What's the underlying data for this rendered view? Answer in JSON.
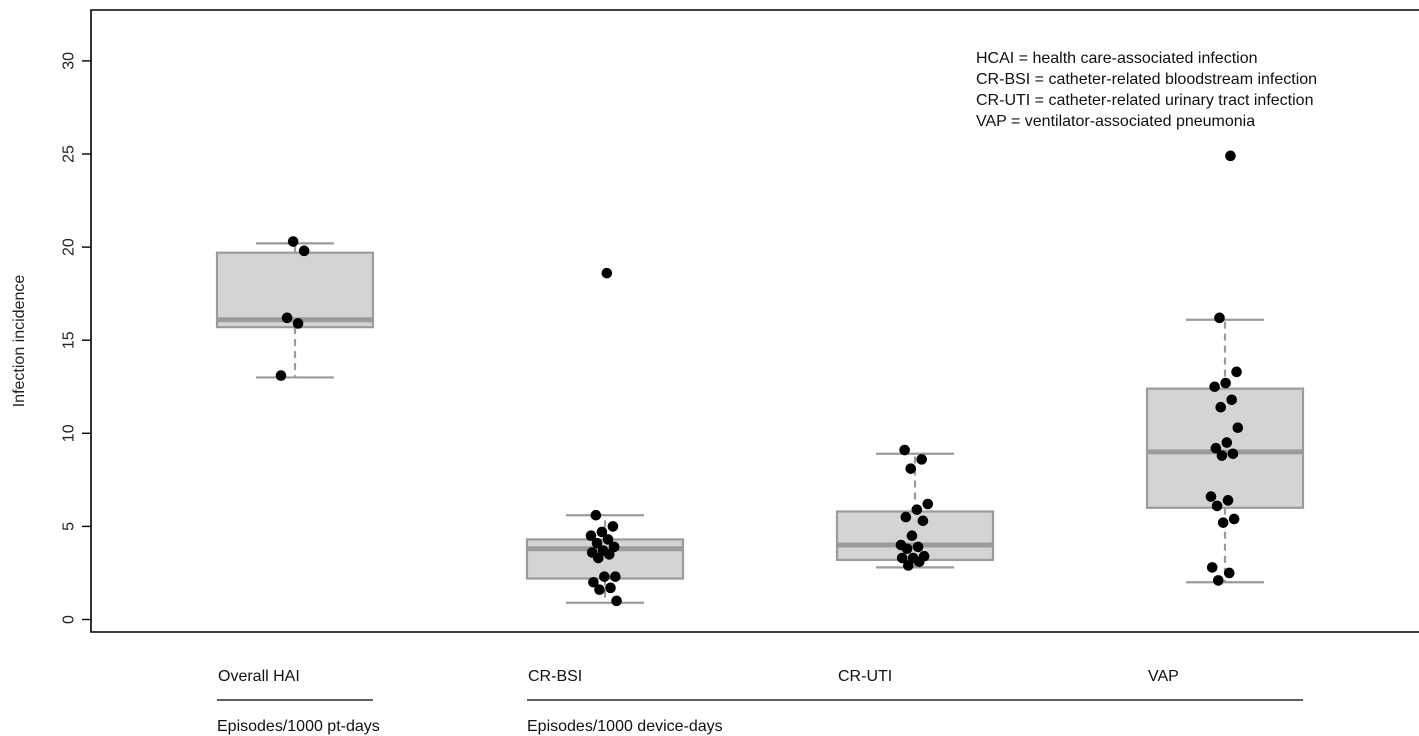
{
  "chart_data": {
    "type": "box",
    "ylabel": "Infection incidence",
    "ylim": [
      0,
      32
    ],
    "yticks": [
      0,
      5,
      10,
      15,
      20,
      25,
      30
    ],
    "legend_placement": "top-right",
    "legend_lines": [
      "HCAI = health care-associated infection",
      "CR-BSI = catheter-related bloodstream infection",
      "CR-UTI = catheter-related urinary tract infection",
      "VAP = ventilator-associated pneumonia"
    ],
    "groups": [
      {
        "label": "Episodes/1000 pt-days",
        "categories": [
          "Overall HAI"
        ]
      },
      {
        "label": "Episodes/1000 device-days",
        "categories": [
          "CR-BSI",
          "CR-UTI",
          "VAP"
        ]
      }
    ],
    "categories": [
      "Overall HAI",
      "CR-BSI",
      "CR-UTI",
      "VAP"
    ],
    "boxes": [
      {
        "name": "Overall HAI",
        "whisker_low": 13.0,
        "q1": 15.7,
        "median": 16.1,
        "q3": 19.7,
        "whisker_high": 20.2,
        "points": [
          13.1,
          15.9,
          16.2,
          19.8,
          20.3
        ]
      },
      {
        "name": "CR-BSI",
        "whisker_low": 0.9,
        "q1": 2.2,
        "median": 3.8,
        "q3": 4.3,
        "whisker_high": 5.6,
        "points": [
          18.6,
          5.6,
          5.0,
          4.7,
          4.5,
          4.3,
          4.1,
          3.9,
          3.7,
          3.6,
          3.5,
          3.3,
          2.3,
          2.3,
          2.0,
          1.7,
          1.6,
          1.0
        ]
      },
      {
        "name": "CR-UTI",
        "whisker_low": 2.8,
        "q1": 3.2,
        "median": 4.0,
        "q3": 5.8,
        "whisker_high": 8.9,
        "points": [
          9.1,
          8.6,
          8.1,
          6.2,
          5.9,
          5.5,
          5.3,
          4.5,
          4.0,
          3.9,
          3.8,
          3.4,
          3.3,
          3.3,
          3.1,
          2.9
        ]
      },
      {
        "name": "VAP",
        "whisker_low": 2.0,
        "q1": 6.0,
        "median": 9.0,
        "q3": 12.4,
        "whisker_high": 16.1,
        "points": [
          24.9,
          16.2,
          13.3,
          12.7,
          12.5,
          11.8,
          11.4,
          10.3,
          9.5,
          9.2,
          8.9,
          8.8,
          6.6,
          6.4,
          6.1,
          5.4,
          5.2,
          2.8,
          2.5,
          2.1
        ]
      }
    ],
    "colors": {
      "box_fill": "#d3d4d6",
      "box_stroke": "#9a9b9d",
      "median": "#9a9b9d",
      "whisker": "#9a9b9d",
      "point": "#000000",
      "axis": "#000000"
    },
    "grid": false
  }
}
